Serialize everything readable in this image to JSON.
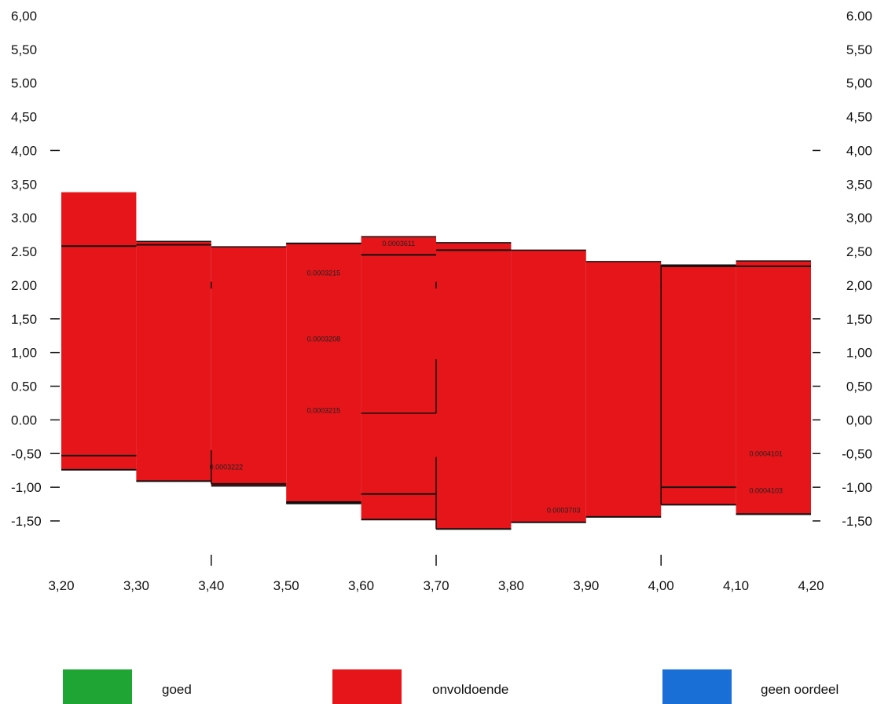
{
  "colors": {
    "background": "#ffffff",
    "bar_fill": "#e5151a",
    "edge_line": "#111111",
    "legend_goed": "#1fa534",
    "legend_onvoldoende": "#e5151a",
    "legend_geen_oordeel": "#1a6fd6"
  },
  "chart_data": {
    "type": "bar",
    "title": "",
    "xlabel": "",
    "ylabel": "",
    "xlim": [
      3.2,
      4.2
    ],
    "ylim": [
      -1.5,
      6.0
    ],
    "grid": false,
    "legend_position": "bottom",
    "x_ticks": [
      "3,20",
      "3,30",
      "3,40",
      "3,50",
      "3,60",
      "3,70",
      "3,80",
      "3,90",
      "4,00",
      "4,10",
      "4,20"
    ],
    "y_ticks_left": [
      "6,00",
      "5,50",
      "5.00",
      "4,50",
      "4,00",
      "3,50",
      "3.00",
      "2.50",
      "2.00",
      "1,50",
      "1,00",
      "0.50",
      "0.00",
      "-0,50",
      "-1,00",
      "-1,50"
    ],
    "y_ticks_right": [
      "6.00",
      "5,50",
      "5,00",
      "4,50",
      "4,00",
      "3,50",
      "3,00",
      "2,50",
      "2,00",
      "1,50",
      "1,00",
      "0,50",
      "0,00",
      "-0,50",
      "-1,00",
      "-1,50"
    ],
    "bars": [
      {
        "x0": 3.2,
        "x1": 3.3,
        "top": 3.38,
        "bottom": -0.74,
        "upper_line": 2.58,
        "lower_line": -0.53
      },
      {
        "x0": 3.3,
        "x1": 3.4,
        "top": 2.65,
        "bottom": -0.91,
        "upper_line": 2.6,
        "lower_line": null
      },
      {
        "x0": 3.4,
        "x1": 3.5,
        "top": 2.57,
        "bottom": -0.98,
        "upper_line": null,
        "lower_line": -0.95
      },
      {
        "x0": 3.5,
        "x1": 3.6,
        "top": 2.62,
        "bottom": -1.24,
        "upper_line": 2.62,
        "lower_line": -1.22
      },
      {
        "x0": 3.6,
        "x1": 3.7,
        "top": 2.72,
        "bottom": -1.48,
        "upper_line": 2.45,
        "lower_line": -1.1
      },
      {
        "x0": 3.7,
        "x1": 3.8,
        "top": 2.63,
        "bottom": -1.62,
        "upper_line": 2.52,
        "lower_line": null
      },
      {
        "x0": 3.8,
        "x1": 3.9,
        "top": 2.52,
        "bottom": -1.52,
        "upper_line": null,
        "lower_line": null
      },
      {
        "x0": 3.9,
        "x1": 4.0,
        "top": 2.35,
        "bottom": -1.44,
        "upper_line": null,
        "lower_line": null
      },
      {
        "x0": 4.0,
        "x1": 4.1,
        "top": 2.3,
        "bottom": -1.26,
        "upper_line": 2.28,
        "lower_line": -1.0
      },
      {
        "x0": 4.1,
        "x1": 4.2,
        "top": 2.36,
        "bottom": -1.4,
        "upper_line": 2.28,
        "lower_line": -1.4
      }
    ],
    "data_labels": [
      {
        "text": "0.0003215",
        "x": 3.55,
        "y": 2.18
      },
      {
        "text": "0.0003208",
        "x": 3.55,
        "y": 1.2
      },
      {
        "text": "0.0003215",
        "x": 3.55,
        "y": 0.14
      },
      {
        "text": "0.0003222",
        "x": 3.42,
        "y": -0.7
      },
      {
        "text": "0.0003703",
        "x": 3.87,
        "y": -1.34
      },
      {
        "text": "0.0004101",
        "x": 4.14,
        "y": -0.5
      },
      {
        "text": "0.0004103",
        "x": 4.14,
        "y": -1.05
      },
      {
        "text": "0.0003611",
        "x": 3.65,
        "y": 2.62
      }
    ]
  },
  "legend": {
    "items": [
      {
        "label": "goed"
      },
      {
        "label": "onvoldoende"
      },
      {
        "label": "geen oordeel"
      }
    ]
  }
}
